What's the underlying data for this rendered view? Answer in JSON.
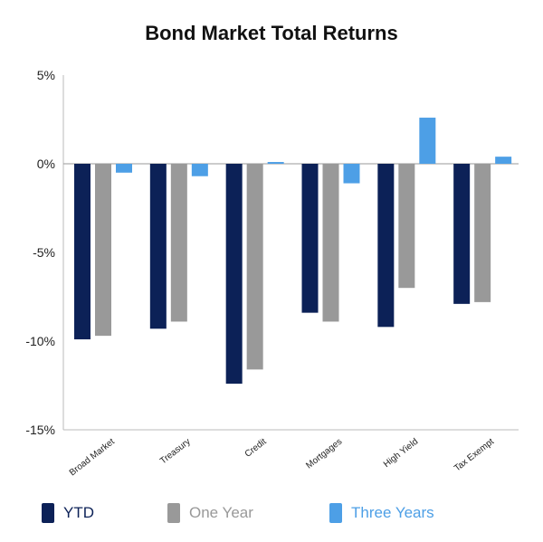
{
  "chart_data": {
    "type": "bar",
    "title": "Bond Market Total Returns",
    "categories": [
      "Broad Market",
      "Treasury",
      "Credit",
      "Mortgages",
      "High Yield",
      "Tax Exempt"
    ],
    "series": [
      {
        "name": "YTD",
        "color": "#0c2157",
        "values": [
          -9.9,
          -9.3,
          -12.4,
          -8.4,
          -9.2,
          -7.9
        ]
      },
      {
        "name": "One Year",
        "color": "#999999",
        "values": [
          -9.7,
          -8.9,
          -11.6,
          -8.9,
          -7.0,
          -7.8
        ]
      },
      {
        "name": "Three Years",
        "color": "#4d9fe6",
        "values": [
          -0.5,
          -0.7,
          0.1,
          -1.1,
          2.6,
          0.4
        ]
      }
    ],
    "ylim": [
      -15,
      5
    ],
    "yticks": [
      "5%",
      "0%",
      "-5%",
      "-10%",
      "-15%"
    ],
    "legend_position": "bottom",
    "grid": false
  }
}
